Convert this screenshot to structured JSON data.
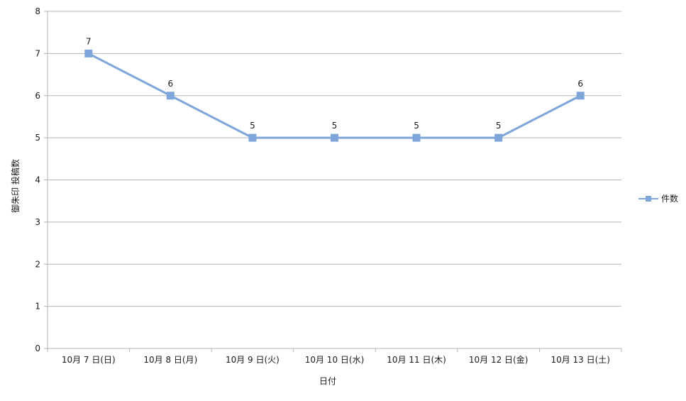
{
  "chart_data": {
    "type": "line",
    "categories": [
      "10月 7 日(日)",
      "10月 8 日(月)",
      "10月 9 日(火)",
      "10月 10 日(水)",
      "10月 11 日(木)",
      "10月 12 日(金)",
      "10月 13 日(土)"
    ],
    "series": [
      {
        "name": "件数",
        "values": [
          7,
          6,
          5,
          5,
          5,
          5,
          6
        ],
        "color": "#7fa6da"
      }
    ],
    "xlabel": "日付",
    "ylabel": "御朱印 投稿数",
    "ylim": [
      0,
      8
    ],
    "yticks": [
      0,
      1,
      2,
      3,
      4,
      5,
      6,
      7,
      8
    ],
    "grid": true,
    "legend_position": "right",
    "data_labels": true
  }
}
